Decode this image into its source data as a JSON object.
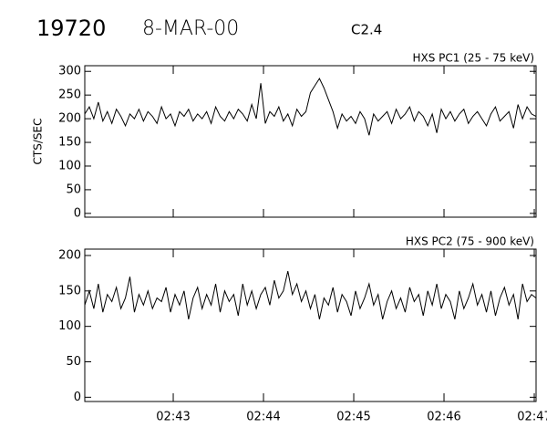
{
  "header": {
    "event": "19720",
    "date": "8-MAR-00",
    "class": "C2.4"
  },
  "chart_data": [
    {
      "type": "line",
      "title": "HXS PC1 (25 - 75 keV)",
      "ylabel": "CTS/SEC",
      "color": "#000000",
      "xlim": [
        162.02,
        167.02
      ],
      "ylim": [
        -8,
        312
      ],
      "yticks": [
        0,
        50,
        100,
        150,
        200,
        250,
        300
      ],
      "x": [
        162.02,
        162.07,
        162.12,
        162.17,
        162.22,
        162.27,
        162.32,
        162.37,
        162.42,
        162.47,
        162.52,
        162.57,
        162.62,
        162.67,
        162.72,
        162.77,
        162.82,
        162.87,
        162.92,
        162.97,
        163.02,
        163.07,
        163.12,
        163.17,
        163.22,
        163.27,
        163.32,
        163.37,
        163.42,
        163.47,
        163.52,
        163.57,
        163.62,
        163.67,
        163.72,
        163.77,
        163.82,
        163.87,
        163.92,
        163.97,
        164.02,
        164.07,
        164.12,
        164.17,
        164.22,
        164.27,
        164.32,
        164.37,
        164.42,
        164.47,
        164.52,
        164.57,
        164.62,
        164.67,
        164.72,
        164.77,
        164.82,
        164.87,
        164.92,
        164.97,
        165.02,
        165.07,
        165.12,
        165.17,
        165.22,
        165.27,
        165.32,
        165.37,
        165.42,
        165.47,
        165.52,
        165.57,
        165.62,
        165.67,
        165.72,
        165.77,
        165.82,
        165.87,
        165.92,
        165.97,
        166.02,
        166.07,
        166.12,
        166.17,
        166.22,
        166.27,
        166.32,
        166.37,
        166.42,
        166.47,
        166.52,
        166.57,
        166.62,
        166.67,
        166.72,
        166.77,
        166.82,
        166.87,
        166.92,
        166.97,
        167.02
      ],
      "values": [
        210,
        225,
        200,
        235,
        195,
        215,
        190,
        220,
        205,
        185,
        210,
        200,
        220,
        195,
        215,
        205,
        190,
        225,
        200,
        210,
        185,
        215,
        205,
        220,
        195,
        210,
        200,
        215,
        190,
        225,
        205,
        195,
        215,
        200,
        220,
        210,
        195,
        230,
        200,
        275,
        190,
        215,
        205,
        225,
        195,
        210,
        185,
        220,
        205,
        215,
        255,
        270,
        285,
        265,
        240,
        215,
        180,
        210,
        195,
        205,
        190,
        215,
        200,
        165,
        210,
        195,
        205,
        215,
        190,
        220,
        200,
        210,
        225,
        195,
        215,
        205,
        185,
        210,
        170,
        220,
        200,
        215,
        195,
        210,
        220,
        190,
        205,
        215,
        200,
        185,
        210,
        225,
        195,
        205,
        215,
        180,
        230,
        200,
        225,
        210,
        205
      ]
    },
    {
      "type": "line",
      "title": "HXS PC2 (75 - 900 keV)",
      "color": "#000000",
      "xlim": [
        162.02,
        167.02
      ],
      "ylim": [
        -6,
        209
      ],
      "yticks": [
        0,
        50,
        100,
        150,
        200
      ],
      "xticks": [
        {
          "value": 163,
          "label": "02:43"
        },
        {
          "value": 164,
          "label": "02:44"
        },
        {
          "value": 165,
          "label": "02:45"
        },
        {
          "value": 166,
          "label": "02:46"
        },
        {
          "value": 167,
          "label": "02:47"
        }
      ],
      "x": [
        162.02,
        162.07,
        162.12,
        162.17,
        162.22,
        162.27,
        162.32,
        162.37,
        162.42,
        162.47,
        162.52,
        162.57,
        162.62,
        162.67,
        162.72,
        162.77,
        162.82,
        162.87,
        162.92,
        162.97,
        163.02,
        163.07,
        163.12,
        163.17,
        163.22,
        163.27,
        163.32,
        163.37,
        163.42,
        163.47,
        163.52,
        163.57,
        163.62,
        163.67,
        163.72,
        163.77,
        163.82,
        163.87,
        163.92,
        163.97,
        164.02,
        164.07,
        164.12,
        164.17,
        164.22,
        164.27,
        164.32,
        164.37,
        164.42,
        164.47,
        164.52,
        164.57,
        164.62,
        164.67,
        164.72,
        164.77,
        164.82,
        164.87,
        164.92,
        164.97,
        165.02,
        165.07,
        165.12,
        165.17,
        165.22,
        165.27,
        165.32,
        165.37,
        165.42,
        165.47,
        165.52,
        165.57,
        165.62,
        165.67,
        165.72,
        165.77,
        165.82,
        165.87,
        165.92,
        165.97,
        166.02,
        166.07,
        166.12,
        166.17,
        166.22,
        166.27,
        166.32,
        166.37,
        166.42,
        166.47,
        166.52,
        166.57,
        166.62,
        166.67,
        166.72,
        166.77,
        166.82,
        166.87,
        166.92,
        166.97,
        167.02
      ],
      "values": [
        130,
        150,
        125,
        160,
        120,
        145,
        135,
        155,
        125,
        140,
        170,
        120,
        145,
        130,
        150,
        125,
        140,
        135,
        155,
        120,
        145,
        130,
        150,
        110,
        140,
        155,
        125,
        145,
        130,
        160,
        120,
        150,
        135,
        145,
        115,
        160,
        130,
        150,
        125,
        145,
        155,
        130,
        165,
        140,
        150,
        178,
        145,
        160,
        135,
        150,
        125,
        145,
        110,
        140,
        130,
        155,
        120,
        145,
        135,
        115,
        150,
        125,
        140,
        160,
        130,
        145,
        110,
        135,
        150,
        125,
        140,
        120,
        155,
        135,
        145,
        115,
        150,
        130,
        160,
        125,
        145,
        135,
        110,
        150,
        125,
        140,
        160,
        130,
        145,
        120,
        150,
        115,
        140,
        155,
        130,
        145,
        110,
        160,
        135,
        145,
        140
      ]
    }
  ]
}
